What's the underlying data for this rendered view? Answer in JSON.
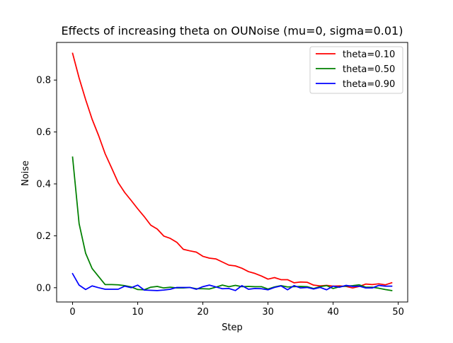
{
  "chart_data": {
    "type": "line",
    "title": "Effects of increasing theta on OUNoise (mu=0, sigma=0.01)",
    "xlabel": "Step",
    "ylabel": "Noise",
    "xlim": [
      -2.45,
      51.45
    ],
    "ylim": [
      -0.055,
      0.945
    ],
    "xticks": [
      0,
      10,
      20,
      30,
      40,
      50
    ],
    "yticks": [
      0.0,
      0.2,
      0.4,
      0.6,
      0.8
    ],
    "grid": false,
    "legend_position": "upper right",
    "series": [
      {
        "name": "theta=0.10",
        "color": "#ff0000",
        "values": [
          0.903,
          0.808,
          0.725,
          0.649,
          0.586,
          0.516,
          0.461,
          0.405,
          0.367,
          0.336,
          0.304,
          0.274,
          0.241,
          0.226,
          0.199,
          0.19,
          0.175,
          0.148,
          0.142,
          0.137,
          0.121,
          0.114,
          0.111,
          0.099,
          0.087,
          0.084,
          0.075,
          0.062,
          0.055,
          0.045,
          0.033,
          0.039,
          0.031,
          0.031,
          0.019,
          0.022,
          0.021,
          0.01,
          0.007,
          0.009,
          0.006,
          0.007,
          0.005,
          -0.001,
          0.005,
          0.014,
          0.012,
          0.015,
          0.011,
          0.019
        ]
      },
      {
        "name": "theta=0.50",
        "color": "#008000",
        "values": [
          0.503,
          0.247,
          0.133,
          0.074,
          0.043,
          0.012,
          0.012,
          0.011,
          0.008,
          0.003,
          -0.007,
          -0.008,
          0.002,
          0.005,
          -0.001,
          0.002,
          -0.001,
          -0.001,
          0.001,
          -0.004,
          -0.004,
          -0.005,
          0.002,
          0.01,
          0.004,
          0.009,
          0.004,
          0.005,
          0.004,
          0.004,
          -0.005,
          0.003,
          0.008,
          0.003,
          0.004,
          0.005,
          0.004,
          -0.003,
          0.004,
          0.008,
          -0.003,
          0.004,
          0.006,
          0.008,
          0.011,
          0.002,
          0.002,
          -0.002,
          -0.007,
          -0.011
        ]
      },
      {
        "name": "theta=0.90",
        "color": "#0000ff",
        "values": [
          0.054,
          0.01,
          -0.007,
          0.007,
          0.0,
          -0.006,
          -0.006,
          -0.006,
          0.006,
          0.0,
          0.01,
          -0.009,
          -0.01,
          -0.011,
          -0.009,
          -0.006,
          0.001,
          0.001,
          0.001,
          -0.006,
          0.004,
          0.01,
          0.003,
          -0.004,
          -0.003,
          -0.011,
          0.008,
          -0.006,
          -0.003,
          -0.004,
          -0.008,
          0.001,
          0.007,
          -0.008,
          0.008,
          -0.001,
          0.001,
          -0.005,
          0.001,
          -0.008,
          0.006,
          0.002,
          0.009,
          0.005,
          0.006,
          -0.001,
          -0.001,
          0.009,
          0.006,
          0.006
        ]
      }
    ]
  }
}
